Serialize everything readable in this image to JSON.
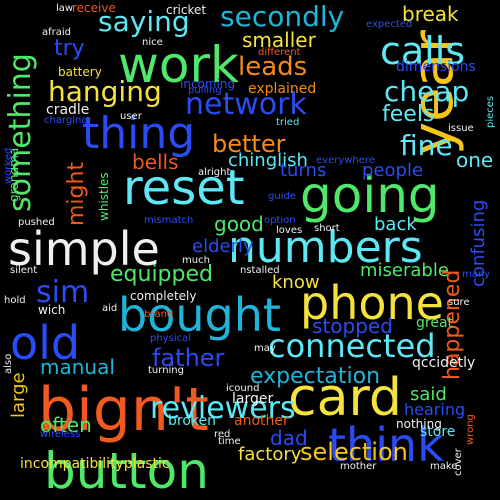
{
  "words": [
    {
      "text": "simple",
      "color": "#f0f0f0"
    },
    {
      "text": "numbers",
      "color": "#5ee8f5"
    },
    {
      "text": "bign't",
      "color": "#f05a1e"
    },
    {
      "text": "bought",
      "color": "#1fb5d8"
    },
    {
      "text": "card",
      "color": "#f5e23c"
    },
    {
      "text": "phone",
      "color": "#f5e23c"
    },
    {
      "text": "reset",
      "color": "#5ee8f5"
    },
    {
      "text": "going",
      "color": "#4fe86a"
    },
    {
      "text": "button",
      "color": "#4fe86a"
    },
    {
      "text": "think",
      "color": "#2a4cf5"
    },
    {
      "text": "old",
      "color": "#2a4cf5"
    },
    {
      "text": "thing",
      "color": "#2a4cf5"
    },
    {
      "text": "work",
      "color": "#4fe86a"
    },
    {
      "text": "year",
      "color": "#f5c51a"
    },
    {
      "text": "calls",
      "color": "#5ee8f5"
    },
    {
      "text": "connected",
      "color": "#5ee8f5"
    },
    {
      "text": "network",
      "color": "#2a4cf5"
    },
    {
      "text": "secondly",
      "color": "#1fb5d8"
    },
    {
      "text": "something",
      "color": "#4fe86a"
    },
    {
      "text": "hanging",
      "color": "#f5e23c"
    },
    {
      "text": "reviewers",
      "color": "#5ee8f5"
    },
    {
      "text": "selection",
      "color": "#f5c51a"
    },
    {
      "text": "sim",
      "color": "#2a4cf5"
    },
    {
      "text": "father",
      "color": "#2a4cf5"
    },
    {
      "text": "cheap",
      "color": "#5ee8f5"
    },
    {
      "text": "fine",
      "color": "#5ee8f5"
    },
    {
      "text": "saying",
      "color": "#5ee8f5"
    },
    {
      "text": "leads",
      "color": "#f58a1a"
    },
    {
      "text": "happened",
      "color": "#f05a1e"
    },
    {
      "text": "expectation",
      "color": "#1fb5d8"
    },
    {
      "text": "stopped",
      "color": "#2a4cf5"
    },
    {
      "text": "better",
      "color": "#f58a1a"
    },
    {
      "text": "equipped",
      "color": "#4fe86a"
    },
    {
      "text": "might",
      "color": "#f05a1e"
    },
    {
      "text": "feels",
      "color": "#5ee8f5"
    },
    {
      "text": "break",
      "color": "#f5e23c"
    },
    {
      "text": "try",
      "color": "#2a4cf5"
    },
    {
      "text": "smaller",
      "color": "#f5e23c"
    },
    {
      "text": "manual",
      "color": "#1fb5d8"
    },
    {
      "text": "often",
      "color": "#4fe86a"
    },
    {
      "text": "dad",
      "color": "#2a4cf5"
    },
    {
      "text": "good",
      "color": "#4fe86a"
    },
    {
      "text": "know",
      "color": "#f5e23c"
    },
    {
      "text": "miserable",
      "color": "#4fe86a"
    },
    {
      "text": "turns",
      "color": "#2a4cf5"
    },
    {
      "text": "people",
      "color": "#2a4cf5"
    },
    {
      "text": "one",
      "color": "#5ee8f5"
    },
    {
      "text": "confusing",
      "color": "#2a4cf5"
    },
    {
      "text": "bells",
      "color": "#f05a1e"
    },
    {
      "text": "chinglish",
      "color": "#5ee8f5"
    },
    {
      "text": "elderly",
      "color": "#2a4cf5"
    },
    {
      "text": "back",
      "color": "#5ee8f5"
    },
    {
      "text": "said",
      "color": "#4fe86a"
    },
    {
      "text": "hearing",
      "color": "#2a4cf5"
    },
    {
      "text": "store",
      "color": "#5ee8f5"
    },
    {
      "text": "large",
      "color": "#f5c51a"
    },
    {
      "text": "broken",
      "color": "#5ee8f5"
    },
    {
      "text": "factory",
      "color": "#f5e23c"
    },
    {
      "text": "incompatibilityplastic",
      "color": "#f5e23c"
    },
    {
      "text": "explained",
      "color": "#f58a1a"
    },
    {
      "text": "dimensions",
      "color": "#2a4cf5"
    },
    {
      "text": "cradle",
      "color": "#f0f0f0"
    },
    {
      "text": "battery",
      "color": "#f5e23c"
    },
    {
      "text": "whistles",
      "color": "#4fe86a"
    },
    {
      "text": "grandma",
      "color": "#4fe86a"
    },
    {
      "text": "incoming",
      "color": "#2a4cf5"
    },
    {
      "text": "receive",
      "color": "#f05a1e"
    },
    {
      "text": "cricket",
      "color": "#f0f0f0"
    },
    {
      "text": "expected",
      "color": "#2a4cf5"
    },
    {
      "text": "different",
      "color": "#f05a1e"
    },
    {
      "text": "pulling",
      "color": "#2a4cf5"
    },
    {
      "text": "afraid",
      "color": "#f0f0f0"
    },
    {
      "text": "law",
      "color": "#f0f0f0"
    },
    {
      "text": "nice",
      "color": "#f0f0f0"
    },
    {
      "text": "charging",
      "color": "#2a4cf5"
    },
    {
      "text": "user",
      "color": "#f0f0f0"
    },
    {
      "text": "tried",
      "color": "#5ee8f5"
    },
    {
      "text": "issue",
      "color": "#f0f0f0"
    },
    {
      "text": "pieces",
      "color": "#5ee8f5"
    },
    {
      "text": "everywhere",
      "color": "#2a4cf5"
    },
    {
      "text": "alright",
      "color": "#f0f0f0"
    },
    {
      "text": "worked",
      "color": "#2a4cf5"
    },
    {
      "text": "guide",
      "color": "#2a4cf5"
    },
    {
      "text": "option",
      "color": "#2a4cf5"
    },
    {
      "text": "loves",
      "color": "#f0f0f0"
    },
    {
      "text": "short",
      "color": "#f0f0f0"
    },
    {
      "text": "pushed",
      "color": "#f0f0f0"
    },
    {
      "text": "mismatch",
      "color": "#2a4cf5"
    },
    {
      "text": "silent",
      "color": "#f0f0f0"
    },
    {
      "text": "much",
      "color": "#f0f0f0"
    },
    {
      "text": "nstalled",
      "color": "#f0f0f0"
    },
    {
      "text": "many",
      "color": "#2a4cf5"
    },
    {
      "text": "hold",
      "color": "#f0f0f0"
    },
    {
      "text": "completely",
      "color": "#f0f0f0"
    },
    {
      "text": "sure",
      "color": "#f0f0f0"
    },
    {
      "text": "great",
      "color": "#4fe86a"
    },
    {
      "text": "wich",
      "color": "#f0f0f0"
    },
    {
      "text": "aid",
      "color": "#f0f0f0"
    },
    {
      "text": "also",
      "color": "#f0f0f0"
    },
    {
      "text": "brand",
      "color": "#f05a1e"
    },
    {
      "text": "physical",
      "color": "#2a4cf5"
    },
    {
      "text": "turning",
      "color": "#f0f0f0"
    },
    {
      "text": "may",
      "color": "#f0f0f0"
    },
    {
      "text": "icound",
      "color": "#f0f0f0"
    },
    {
      "text": "qccidetly",
      "color": "#f0f0f0"
    },
    {
      "text": "larger",
      "color": "#f0f0f0"
    },
    {
      "text": "another",
      "color": "#f05a1e"
    },
    {
      "text": "nothing",
      "color": "#f0f0f0"
    },
    {
      "text": "wrong",
      "color": "#f05a1e"
    },
    {
      "text": "wireless",
      "color": "#2a4cf5"
    },
    {
      "text": "red",
      "color": "#f0f0f0"
    },
    {
      "text": "time",
      "color": "#f0f0f0"
    },
    {
      "text": "mother",
      "color": "#f0f0f0"
    },
    {
      "text": "make",
      "color": "#f0f0f0"
    },
    {
      "text": "cover",
      "color": "#f0f0f0"
    }
  ]
}
